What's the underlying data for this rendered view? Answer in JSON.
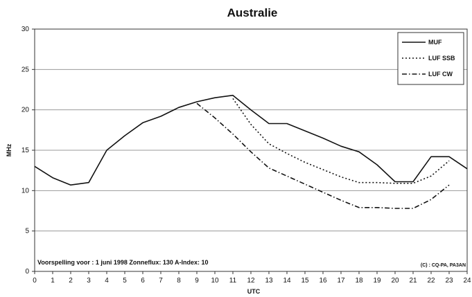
{
  "chart_data": {
    "type": "line",
    "title": "Australie",
    "xlabel": "UTC",
    "ylabel": "MHz",
    "x": [
      0,
      1,
      2,
      3,
      4,
      5,
      6,
      7,
      8,
      9,
      10,
      11,
      12,
      13,
      14,
      15,
      16,
      17,
      18,
      19,
      20,
      21,
      22,
      23,
      24
    ],
    "xticks": [
      "0",
      "1",
      "2",
      "3",
      "4",
      "5",
      "6",
      "7",
      "8",
      "9",
      "10",
      "11",
      "12",
      "13",
      "14",
      "15",
      "16",
      "17",
      "18",
      "19",
      "20",
      "21",
      "22",
      "23",
      "24"
    ],
    "ylim": [
      0,
      30
    ],
    "yticks": [
      "0",
      "5",
      "10",
      "15",
      "20",
      "25",
      "30"
    ],
    "grid": "horizontal",
    "legend_position": "top-right",
    "series": [
      {
        "name": "MUF",
        "style": "solid",
        "points": [
          [
            0,
            13
          ],
          [
            1,
            11.6
          ],
          [
            2,
            10.7
          ],
          [
            3,
            11
          ],
          [
            4,
            15
          ],
          [
            5,
            16.8
          ],
          [
            6,
            18.4
          ],
          [
            7,
            19.2
          ],
          [
            8,
            20.3
          ],
          [
            9,
            21
          ],
          [
            10,
            21.5
          ],
          [
            11,
            21.8
          ],
          [
            12,
            20
          ],
          [
            13,
            18.3
          ],
          [
            14,
            18.3
          ],
          [
            15,
            17.4
          ],
          [
            16,
            16.5
          ],
          [
            17,
            15.5
          ],
          [
            18,
            14.8
          ],
          [
            19,
            13.2
          ],
          [
            20,
            11.1
          ],
          [
            21,
            11.1
          ],
          [
            22,
            14.2
          ],
          [
            23,
            14.2
          ],
          [
            24,
            12.7
          ]
        ]
      },
      {
        "name": "LUF SSB",
        "style": "dotted",
        "points": [
          [
            11,
            21.4
          ],
          [
            12,
            18.2
          ],
          [
            13,
            15.8
          ],
          [
            14,
            14.6
          ],
          [
            15,
            13.5
          ],
          [
            16,
            12.6
          ],
          [
            17,
            11.7
          ],
          [
            18,
            11
          ],
          [
            19,
            11
          ],
          [
            20,
            10.9
          ],
          [
            21,
            10.9
          ],
          [
            22,
            11.8
          ],
          [
            23,
            13.7
          ]
        ]
      },
      {
        "name": "LUF CW",
        "style": "dashdot",
        "points": [
          [
            9,
            20.8
          ],
          [
            10,
            19
          ],
          [
            11,
            17
          ],
          [
            12,
            14.8
          ],
          [
            13,
            12.8
          ],
          [
            14,
            11.8
          ],
          [
            15,
            10.8
          ],
          [
            16,
            9.8
          ],
          [
            17,
            8.8
          ],
          [
            18,
            7.9
          ],
          [
            19,
            7.9
          ],
          [
            20,
            7.8
          ],
          [
            21,
            7.8
          ],
          [
            22,
            8.9
          ],
          [
            23,
            10.7
          ]
        ]
      }
    ],
    "annotation": "Voorspelling voor : 1 juni 1998   Zonneflux: 130   A-Index: 10",
    "credit": "(C) : CQ-PA, PA3AN"
  }
}
